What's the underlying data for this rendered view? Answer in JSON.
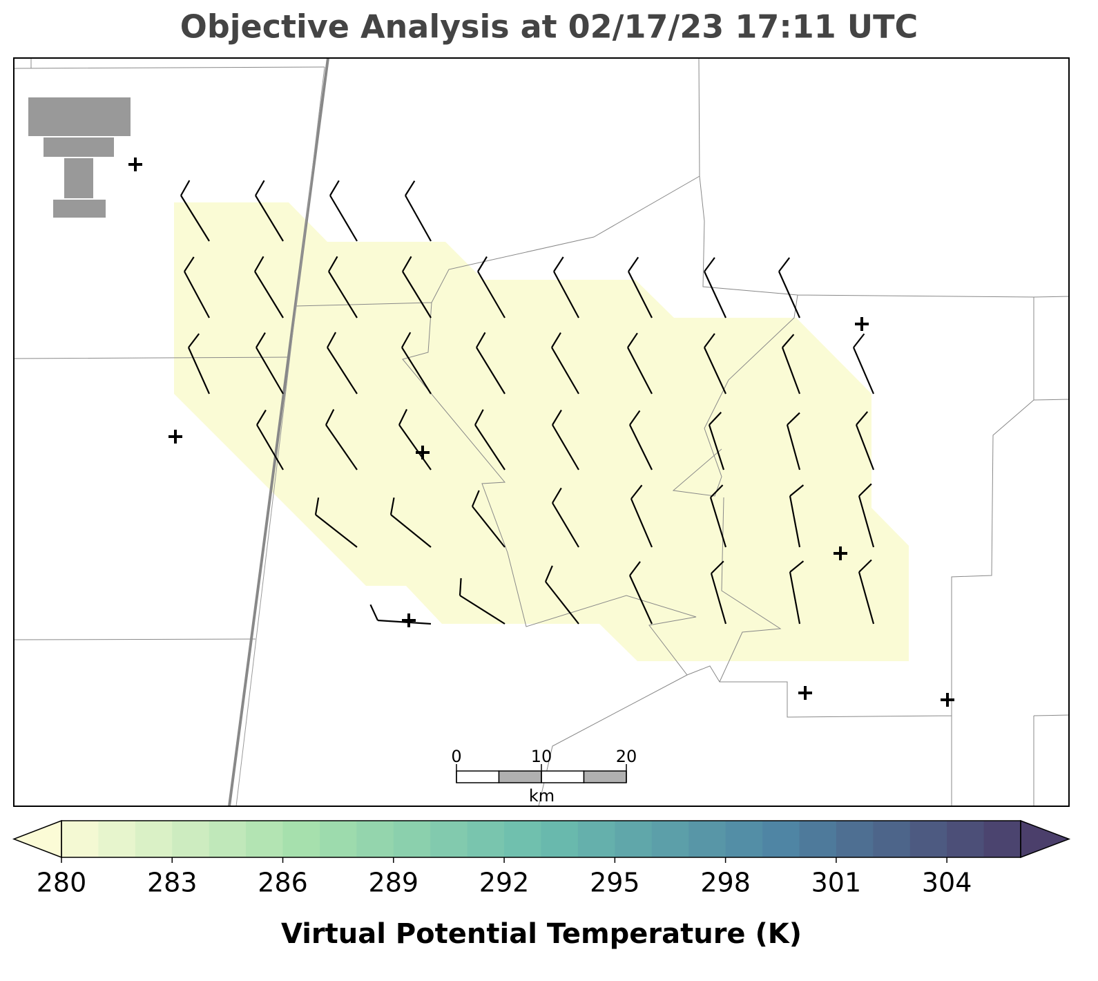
{
  "title": "Objective Analysis at 02/17/23 17:11 UTC",
  "scale_bar": {
    "range": [
      0,
      20
    ],
    "ticks": [
      0,
      10,
      20
    ],
    "unit": "km"
  },
  "colorbar": {
    "label": "Virtual Potential Temperature (K)",
    "range": [
      280,
      306
    ],
    "ticks": [
      280,
      283,
      286,
      289,
      292,
      295,
      298,
      301,
      304
    ],
    "colors": [
      "#fbfbd6",
      "#a6e0ad",
      "#6bbdae",
      "#4f85a4",
      "#4b3f6b"
    ]
  }
}
